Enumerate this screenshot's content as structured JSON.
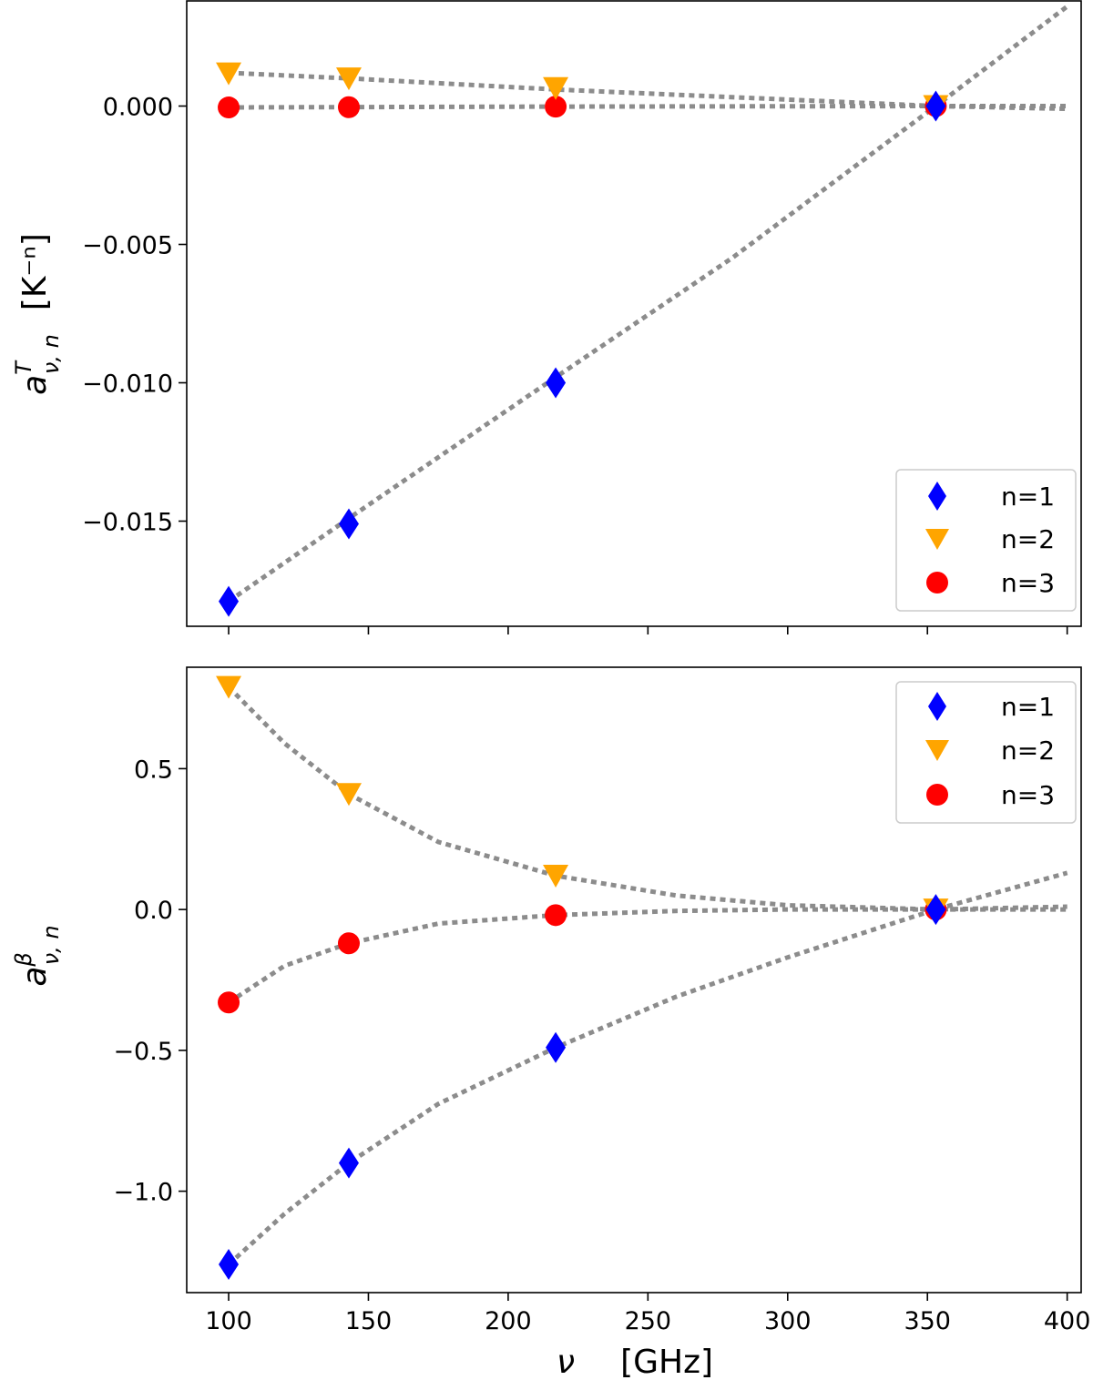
{
  "chart_data": [
    {
      "type": "scatter",
      "panel": "top",
      "ylabel_main": "a",
      "ylabel_sup": "T",
      "ylabel_sub": "ν, n",
      "ylabel_unit": "[K⁻ⁿ]",
      "xlim": [
        85,
        405
      ],
      "ylim": [
        -0.0188,
        0.0038
      ],
      "yticks": [
        0.0,
        -0.005,
        -0.01,
        -0.015
      ],
      "ytick_labels": [
        "0.000",
        "−0.005",
        "−0.010",
        "−0.015"
      ],
      "xticks": [
        100,
        150,
        200,
        250,
        300,
        350,
        400
      ],
      "xtick_labels_visible": false,
      "legend_position": "lower-right",
      "series": [
        {
          "name": "n=1",
          "marker": "diamond",
          "color": "#0000ff",
          "x": [
            100,
            143,
            217,
            353
          ],
          "y": [
            -0.0179,
            -0.0151,
            -0.01,
            0.0
          ],
          "fit_x": [
            100,
            143,
            217,
            280,
            353,
            400
          ],
          "fit_y": [
            -0.0179,
            -0.0149,
            -0.0098,
            -0.0055,
            0.0,
            0.0036
          ]
        },
        {
          "name": "n=2",
          "marker": "triangle-down",
          "color": "#ffa500",
          "x": [
            100,
            143,
            217,
            353
          ],
          "y": [
            0.00118,
            0.001,
            0.00065,
            0.0
          ],
          "fit_x": [
            100,
            143,
            217,
            353,
            400
          ],
          "fit_y": [
            0.0012,
            0.001,
            0.0006,
            0.0,
            -0.0001
          ]
        },
        {
          "name": "n=3",
          "marker": "circle",
          "color": "#ff0000",
          "x": [
            100,
            143,
            217,
            353
          ],
          "y": [
            -5e-05,
            -4e-05,
            -2e-05,
            0.0
          ],
          "fit_x": [
            100,
            217,
            353,
            400
          ],
          "fit_y": [
            -5e-05,
            -2e-05,
            0.0,
            0.0
          ]
        }
      ]
    },
    {
      "type": "scatter",
      "panel": "bottom",
      "ylabel_main": "a",
      "ylabel_sup": "β",
      "ylabel_sub": "ν, n",
      "xlabel_symbol": "ν",
      "xlabel_unit": "[GHz]",
      "xlim": [
        85,
        405
      ],
      "ylim": [
        -1.36,
        0.86
      ],
      "yticks": [
        0.5,
        0.0,
        -0.5,
        -1.0
      ],
      "ytick_labels": [
        "0.5",
        "0.0",
        "−0.5",
        "−1.0"
      ],
      "xticks": [
        100,
        150,
        200,
        250,
        300,
        350,
        400
      ],
      "xtick_labels": [
        "100",
        "150",
        "200",
        "250",
        "300",
        "350",
        "400"
      ],
      "legend_position": "upper-right",
      "series": [
        {
          "name": "n=1",
          "marker": "diamond",
          "color": "#0000ff",
          "x": [
            100,
            143,
            217,
            353
          ],
          "y": [
            -1.26,
            -0.9,
            -0.49,
            0.0
          ],
          "fit_x": [
            100,
            120,
            143,
            175,
            217,
            260,
            300,
            353,
            400
          ],
          "fit_y": [
            -1.26,
            -1.08,
            -0.9,
            -0.69,
            -0.49,
            -0.31,
            -0.17,
            0.0,
            0.13
          ]
        },
        {
          "name": "n=2",
          "marker": "triangle-down",
          "color": "#ffa500",
          "x": [
            100,
            143,
            217,
            353
          ],
          "y": [
            0.79,
            0.41,
            0.12,
            0.0
          ],
          "fit_x": [
            100,
            120,
            143,
            175,
            217,
            260,
            300,
            353,
            400
          ],
          "fit_y": [
            0.79,
            0.59,
            0.41,
            0.24,
            0.12,
            0.05,
            0.015,
            0.0,
            0.0
          ]
        },
        {
          "name": "n=3",
          "marker": "circle",
          "color": "#ff0000",
          "x": [
            100,
            143,
            217,
            353
          ],
          "y": [
            -0.33,
            -0.12,
            -0.02,
            0.0
          ],
          "fit_x": [
            100,
            120,
            143,
            175,
            217,
            260,
            300,
            353,
            400
          ],
          "fit_y": [
            -0.33,
            -0.2,
            -0.12,
            -0.05,
            -0.02,
            -0.005,
            0.0,
            0.0,
            0.01
          ]
        }
      ]
    }
  ]
}
